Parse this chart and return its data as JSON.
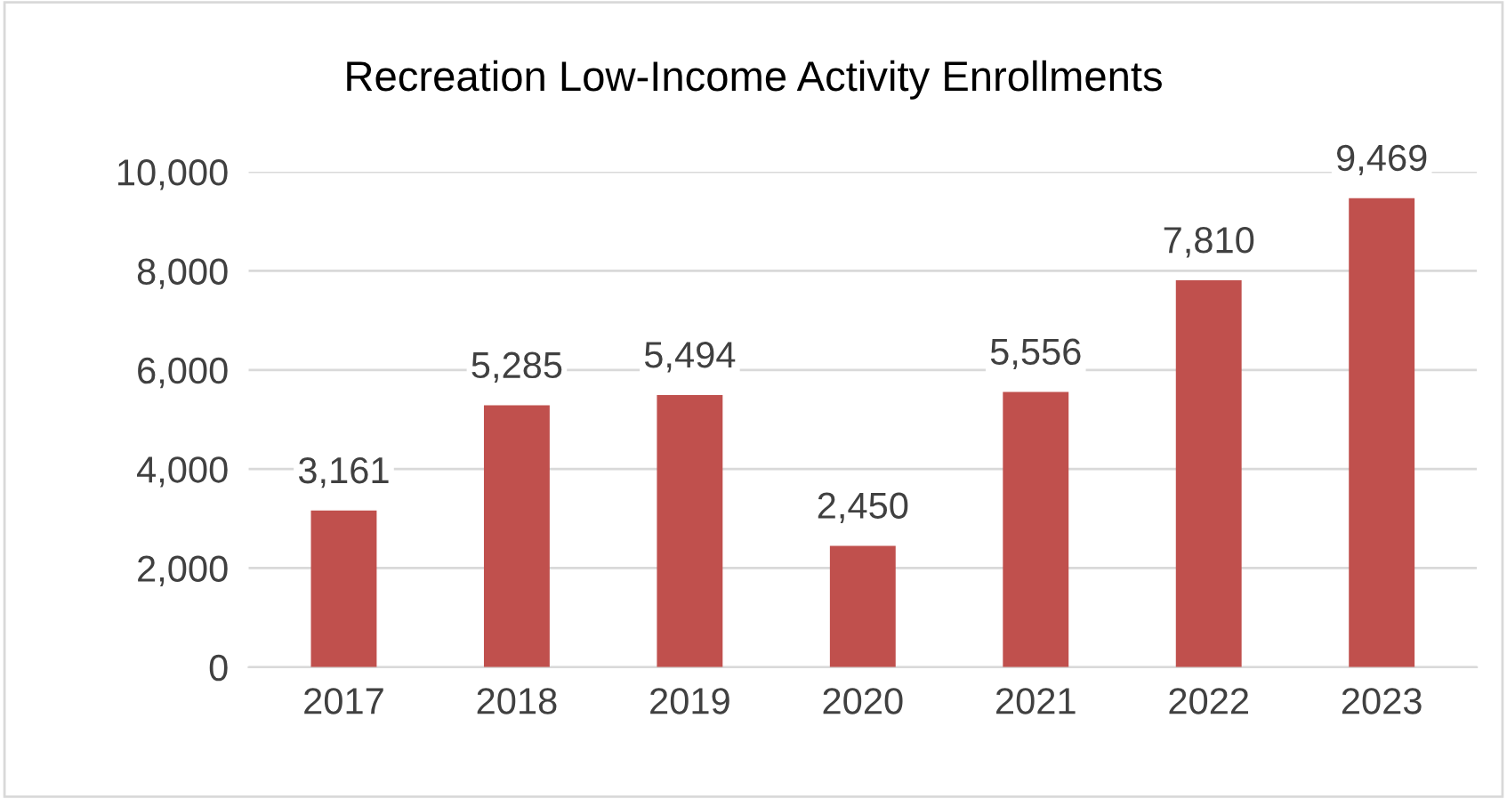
{
  "chart_data": {
    "type": "bar",
    "title": "Recreation Low-Income Activity Enrollments",
    "categories": [
      "2017",
      "2018",
      "2019",
      "2020",
      "2021",
      "2022",
      "2023"
    ],
    "values": [
      3161,
      5285,
      5494,
      2450,
      5556,
      7810,
      9469
    ],
    "color": "#c0504d",
    "ylim": [
      0,
      10000
    ],
    "yticks": [
      0,
      {
        "value": 2000,
        "label": "2,000"
      },
      {
        "value": 4000,
        "label": "4,000"
      },
      {
        "value": 6000,
        "label": "6,000"
      },
      {
        "value": 8000,
        "label": "8,000"
      },
      {
        "value": 10000,
        "label": "10,000"
      }
    ],
    "value_labels": [
      "3,161",
      "5,285",
      "5,494",
      "2,450",
      "5,556",
      "7,810",
      "9,469"
    ],
    "grid": "y"
  }
}
